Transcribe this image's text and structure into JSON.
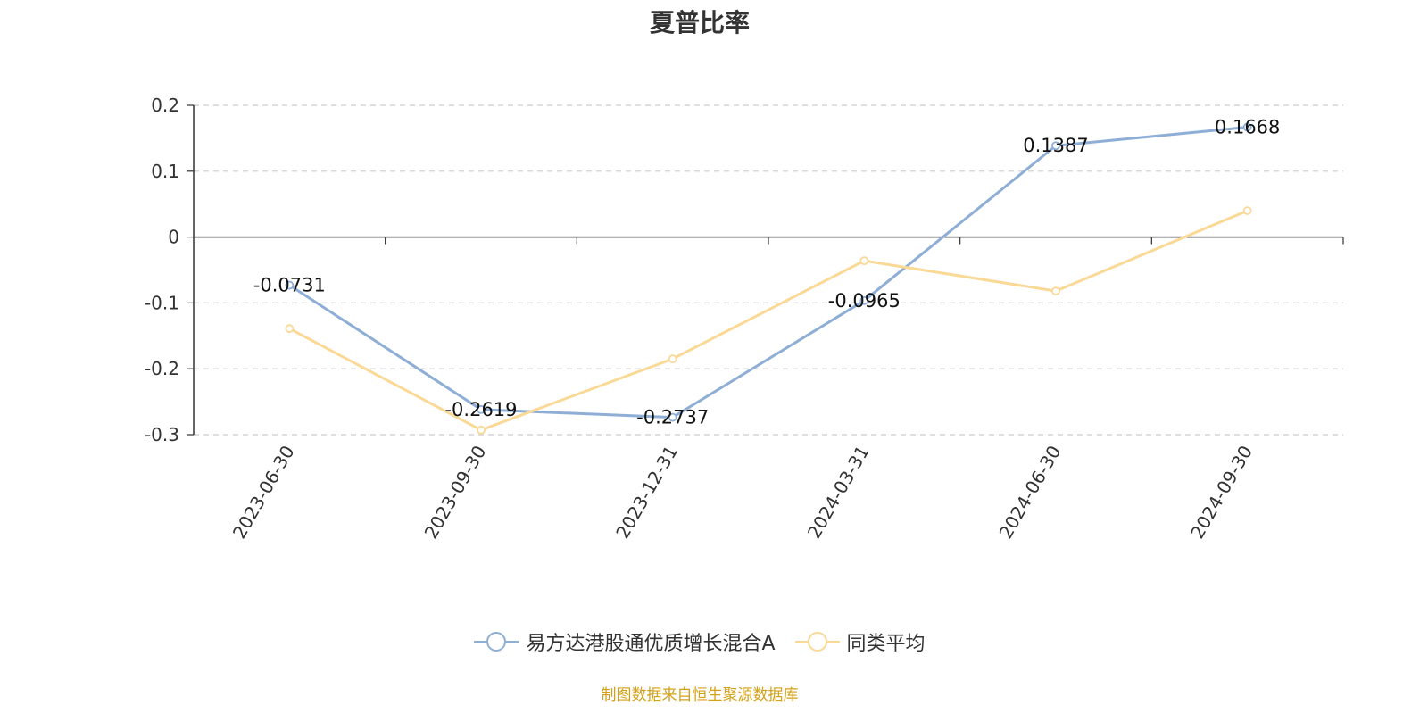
{
  "chart_data": {
    "type": "line",
    "title": "夏普比率",
    "categories": [
      "2023-06-30",
      "2023-09-30",
      "2023-12-31",
      "2024-03-31",
      "2024-06-30",
      "2024-09-30"
    ],
    "series": [
      {
        "name": "易方达港股通优质增长混合A",
        "values": [
          -0.0731,
          -0.2619,
          -0.2737,
          -0.0965,
          0.1387,
          0.1668
        ],
        "color": "#8eaed6",
        "labels": [
          "-0.0731",
          "-0.2619",
          "-0.2737",
          "-0.0965",
          "0.1387",
          "0.1668"
        ]
      },
      {
        "name": "同类平均",
        "values": [
          -0.139,
          -0.293,
          -0.185,
          -0.036,
          -0.082,
          0.04
        ],
        "color": "#fad996"
      }
    ],
    "yticks": [
      "0.2",
      "0.1",
      "0",
      "-0.1",
      "-0.2",
      "-0.3"
    ],
    "ylim": [
      -0.3,
      0.2
    ],
    "grid": true,
    "legend_position": "bottom"
  },
  "source": "制图数据来自恒生聚源数据库"
}
